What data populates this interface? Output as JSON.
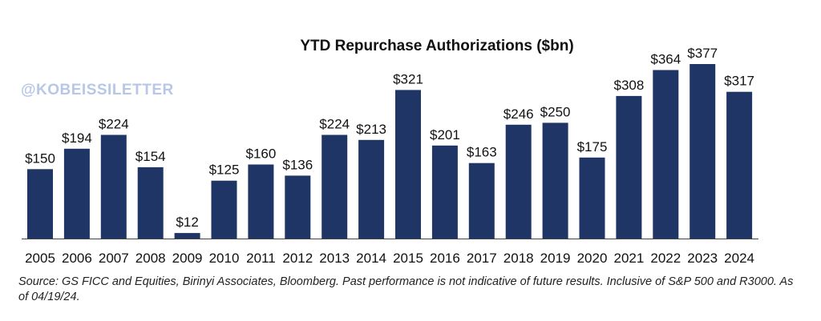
{
  "watermark": "@KOBEISSILETTER",
  "source_note": "Source: GS FICC and Equities, Birinyi Associates, Bloomberg. Past performance is not indicative of future results. Inclusive of S&P 500 and R3000. As of 04/19/24.",
  "colors": {
    "bar": "#1f3566",
    "watermark": "#b7c7e8",
    "axis": "#444444"
  },
  "chart_data": {
    "type": "bar",
    "title": "YTD Repurchase Authorizations ($bn)",
    "xlabel": "",
    "ylabel": "",
    "ylim": [
      0,
      400
    ],
    "grid": false,
    "categories": [
      "2005",
      "2006",
      "2007",
      "2008",
      "2009",
      "2010",
      "2011",
      "2012",
      "2013",
      "2014",
      "2015",
      "2016",
      "2017",
      "2018",
      "2019",
      "2020",
      "2021",
      "2022",
      "2023",
      "2024"
    ],
    "values": [
      150,
      194,
      224,
      154,
      12,
      125,
      160,
      136,
      224,
      213,
      321,
      201,
      163,
      246,
      250,
      175,
      308,
      364,
      377,
      317
    ],
    "data_labels": [
      "$150",
      "$194",
      "$224",
      "$154",
      "$12",
      "$125",
      "$160",
      "$136",
      "$224",
      "$213",
      "$321",
      "$201",
      "$163",
      "$246",
      "$250",
      "$175",
      "$308",
      "$364",
      "$377",
      "$317"
    ]
  }
}
